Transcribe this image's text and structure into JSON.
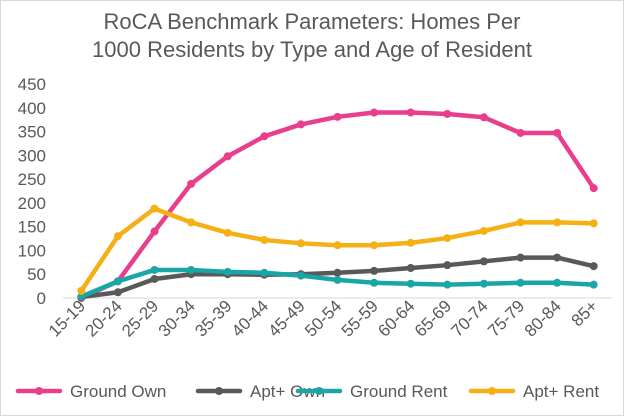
{
  "chart_data": {
    "type": "line",
    "title_lines": [
      "RoCA Benchmark Parameters: Homes Per",
      "1000 Residents by Type and Age of Resident"
    ],
    "xlabel": "",
    "ylabel": "",
    "ylim": [
      0,
      450
    ],
    "yticks": [
      "0",
      "50",
      "100",
      "150",
      "200",
      "250",
      "300",
      "350",
      "400",
      "450"
    ],
    "categories": [
      "15-19",
      "20-24",
      "25-29",
      "30-34",
      "35-39",
      "40-44",
      "45-49",
      "50-54",
      "55-59",
      "60-64",
      "65-69",
      "70-74",
      "75-79",
      "80-84",
      "85+"
    ],
    "grid": false,
    "legend_position": "bottom",
    "series": [
      {
        "name": "Ground Own",
        "color": "#e83e8c",
        "values": [
          0,
          35,
          140,
          240,
          298,
          340,
          365,
          381,
          390,
          390,
          387,
          380,
          347,
          347,
          231
        ]
      },
      {
        "name": "Apt+ Own",
        "color": "#595959",
        "values": [
          2,
          12,
          40,
          50,
          50,
          49,
          50,
          53,
          57,
          63,
          69,
          77,
          85,
          85,
          67
        ]
      },
      {
        "name": "Ground Rent",
        "color": "#1aa6a6",
        "values": [
          3,
          35,
          59,
          59,
          55,
          53,
          47,
          38,
          32,
          30,
          28,
          30,
          32,
          32,
          28
        ]
      },
      {
        "name": "Apt+ Rent",
        "color": "#f5b015",
        "values": [
          15,
          130,
          188,
          159,
          137,
          122,
          115,
          111,
          111,
          116,
          126,
          141,
          159,
          159,
          157
        ]
      }
    ]
  }
}
